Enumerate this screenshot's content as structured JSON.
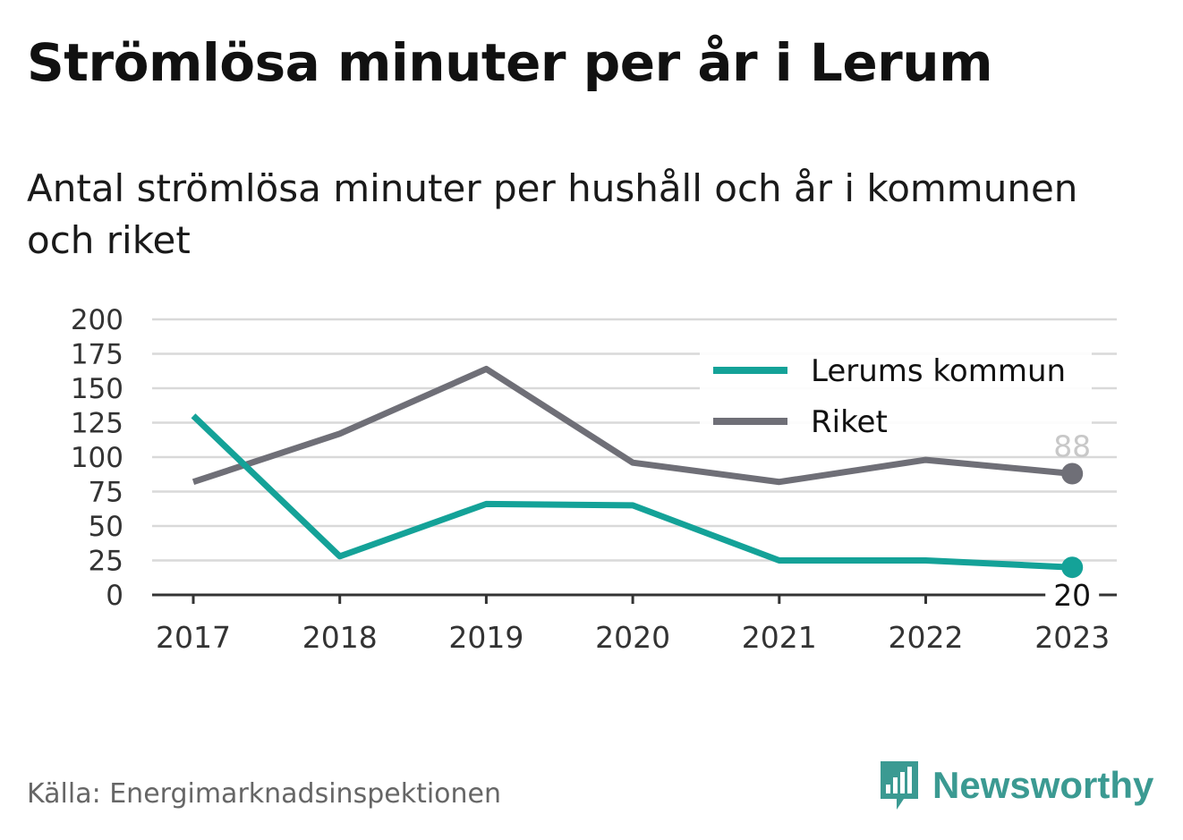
{
  "header": {
    "title": "Strömlösa minuter per år i Lerum",
    "subtitle": "Antal strömlösa minuter per hushåll och år i kommunen och riket"
  },
  "footer": {
    "source": "Källa: Energimarknadsinspektionen",
    "brand": "Newsworthy",
    "brand_icon": "bar-chart-bubble-icon"
  },
  "colors": {
    "lerum": "#14a298",
    "riket": "#6f6f77",
    "grid": "#d9d9d9",
    "axis": "#333333",
    "brand": "#3b9a92"
  },
  "chart_data": {
    "type": "line",
    "categories": [
      "2017",
      "2018",
      "2019",
      "2020",
      "2021",
      "2022",
      "2023"
    ],
    "ylim": [
      0,
      200
    ],
    "yticks": [
      "0",
      "25",
      "50",
      "75",
      "100",
      "125",
      "150",
      "175",
      "200"
    ],
    "grid": true,
    "legend_placement": "top-right",
    "series": [
      {
        "name": "Lerums kommun",
        "values": [
          130,
          28,
          66,
          65,
          25,
          25,
          20
        ],
        "end_label": "20"
      },
      {
        "name": "Riket",
        "values": [
          82,
          117,
          164,
          96,
          82,
          98,
          88
        ],
        "end_label": "88"
      }
    ]
  }
}
